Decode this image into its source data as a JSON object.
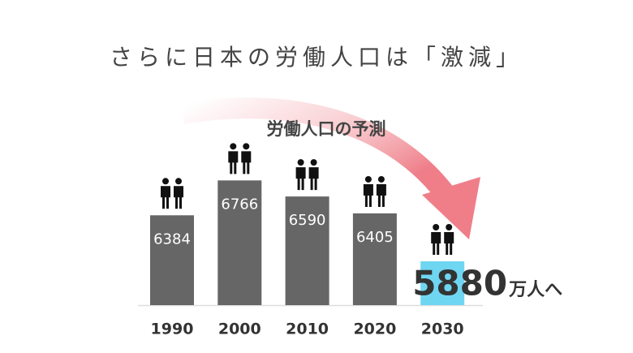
{
  "chart_data": {
    "type": "bar",
    "title": "さらに日本の労働人口は「激減」",
    "subtitle": "労働人口の予測",
    "categories": [
      "1990",
      "2000",
      "2010",
      "2020",
      "2030"
    ],
    "values": [
      6384,
      6766,
      6590,
      6405,
      5880
    ],
    "colors": [
      "#666666",
      "#666666",
      "#666666",
      "#666666",
      "#6fd6f2"
    ],
    "annotation": "万人へ",
    "ylim": [
      5400,
      7000
    ]
  }
}
